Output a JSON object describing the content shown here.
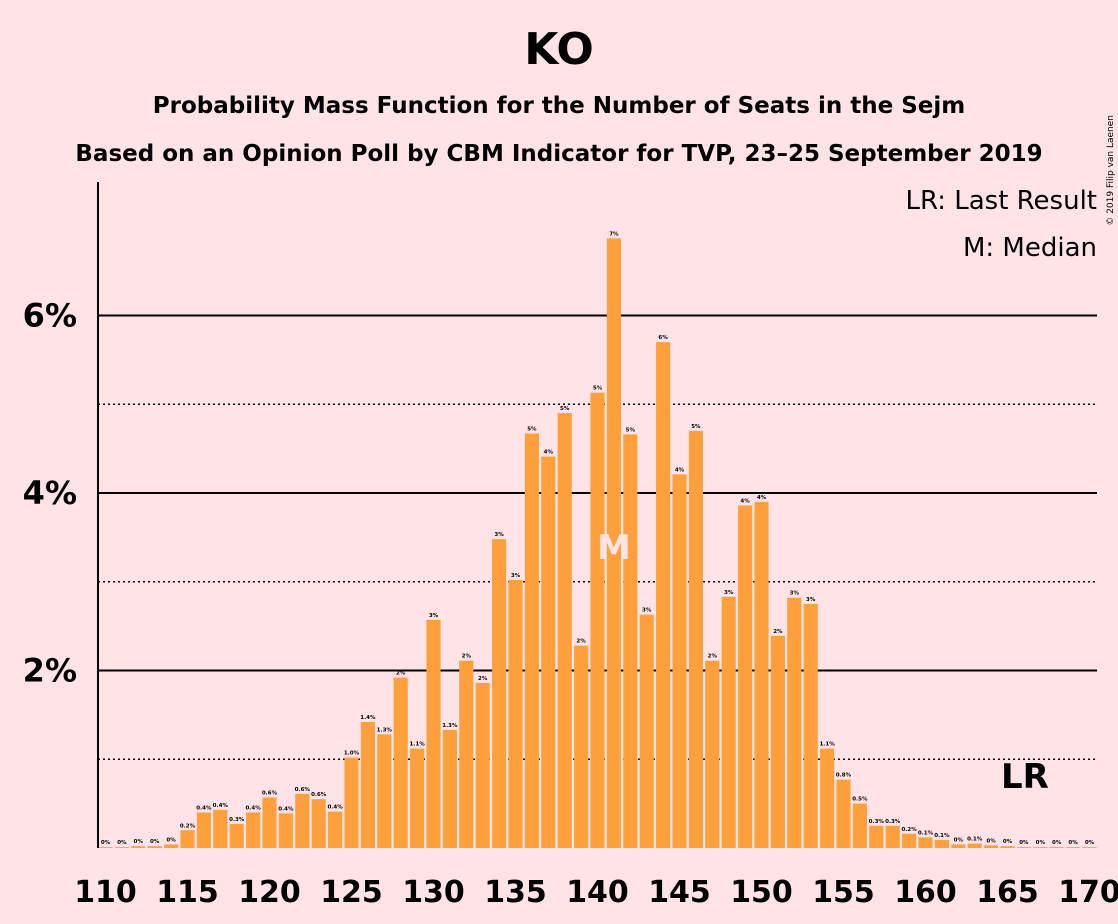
{
  "chart_data": {
    "type": "bar",
    "title": "KO",
    "subtitle_lines": [
      "Probability Mass Function for the Number of Seats in the Sejm",
      "Based on an Opinion Poll by CBM Indicator for TVP, 23–25 September 2019"
    ],
    "copyright": "© 2019 Filip van Laenen",
    "legend": [
      "LR: Last Result",
      "M: Median"
    ],
    "legend_position": "top-right",
    "x_start": 110,
    "x_end": 170,
    "x_tick_labels": [
      "110",
      "115",
      "120",
      "125",
      "130",
      "135",
      "140",
      "145",
      "150",
      "155",
      "160",
      "165",
      "170"
    ],
    "y_tick_labels": [
      "2%",
      "4%",
      "6%"
    ],
    "ylim": [
      0,
      7.4
    ],
    "solid_gridlines": [
      2,
      4,
      6
    ],
    "dotted_gridlines": [
      1,
      3,
      5
    ],
    "bar_color": "#FFA03C",
    "median_seat": 141,
    "median_marker": "M",
    "last_result_seat": 166,
    "last_result_marker": "LR",
    "seats": [
      110,
      111,
      112,
      113,
      114,
      115,
      116,
      117,
      118,
      119,
      120,
      121,
      122,
      123,
      124,
      125,
      126,
      127,
      128,
      129,
      130,
      131,
      132,
      133,
      134,
      135,
      136,
      137,
      138,
      139,
      140,
      141,
      142,
      143,
      144,
      145,
      146,
      147,
      148,
      149,
      150,
      151,
      152,
      153,
      154,
      155,
      156,
      157,
      158,
      159,
      160,
      161,
      162,
      163,
      164,
      165,
      166,
      167,
      168,
      169,
      170
    ],
    "values": [
      0.01,
      0.01,
      0.02,
      0.02,
      0.04,
      0.2,
      0.4,
      0.43,
      0.27,
      0.4,
      0.57,
      0.39,
      0.61,
      0.55,
      0.41,
      1.02,
      1.42,
      1.28,
      1.92,
      1.12,
      2.57,
      1.33,
      2.11,
      1.86,
      3.48,
      3.02,
      4.67,
      4.41,
      4.9,
      2.28,
      5.13,
      6.87,
      4.66,
      2.63,
      5.7,
      4.21,
      4.7,
      2.11,
      2.83,
      3.86,
      3.9,
      2.39,
      2.82,
      2.75,
      1.12,
      0.77,
      0.5,
      0.25,
      0.25,
      0.16,
      0.12,
      0.09,
      0.04,
      0.05,
      0.03,
      0.02,
      0.01,
      0.01,
      0.01,
      0.01,
      0.01
    ],
    "value_labels": [
      "0%",
      "0%",
      "0%",
      "0%",
      "0%",
      "0.2%",
      "0.4%",
      "0.4%",
      "0.3%",
      "0.4%",
      "0.6%",
      "0.4%",
      "0.6%",
      "0.6%",
      "0.4%",
      "1.0%",
      "1.4%",
      "1.3%",
      "2%",
      "1.1%",
      "3%",
      "1.3%",
      "2%",
      "2%",
      "3%",
      "3%",
      "5%",
      "4%",
      "5%",
      "2%",
      "5%",
      "7%",
      "5%",
      "3%",
      "6%",
      "4%",
      "5%",
      "2%",
      "3%",
      "4%",
      "4%",
      "2%",
      "3%",
      "3%",
      "1.1%",
      "0.8%",
      "0.5%",
      "0.3%",
      "0.3%",
      "0.2%",
      "0.1%",
      "0.1%",
      "0%",
      "0.1%",
      "0%",
      "0%",
      "0%",
      "0%",
      "0%",
      "0%",
      "0%"
    ]
  }
}
